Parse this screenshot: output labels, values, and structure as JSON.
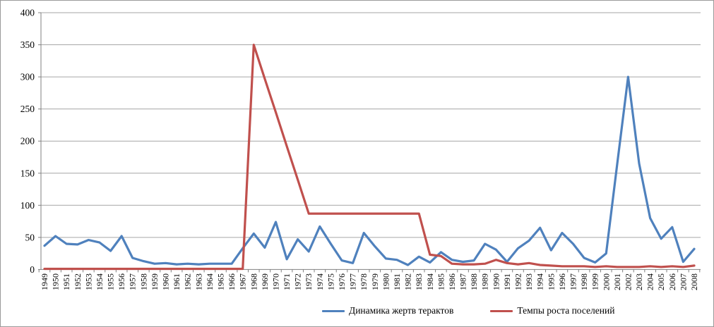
{
  "chart_data": {
    "type": "line",
    "title": "",
    "xlabel": "",
    "ylabel": "",
    "ylim": [
      0,
      400
    ],
    "y_ticks": [
      0,
      50,
      100,
      150,
      200,
      250,
      300,
      350,
      400
    ],
    "grid": "horizontal",
    "legend_position": "bottom",
    "x": [
      1949,
      1950,
      1951,
      1952,
      1953,
      1954,
      1955,
      1956,
      1957,
      1958,
      1959,
      1960,
      1961,
      1962,
      1963,
      1964,
      1965,
      1966,
      1967,
      1968,
      1969,
      1970,
      1971,
      1972,
      1973,
      1974,
      1975,
      1976,
      1977,
      1978,
      1979,
      1980,
      1981,
      1982,
      1983,
      1984,
      1985,
      1986,
      1987,
      1988,
      1989,
      1990,
      1991,
      1992,
      1993,
      1994,
      1995,
      1996,
      1997,
      1998,
      1999,
      2000,
      2001,
      2002,
      2003,
      2004,
      2005,
      2006,
      2007,
      2008
    ],
    "series": [
      {
        "name": "Динамика жертв терактов",
        "color": "#4F81BD",
        "values": [
          37,
          52,
          40,
          39,
          46,
          42,
          29,
          52,
          18,
          13,
          9,
          10,
          8,
          9,
          8,
          9,
          9,
          9,
          33,
          56,
          34,
          74,
          16,
          47,
          28,
          67,
          40,
          14,
          10,
          57,
          36,
          17,
          15,
          7,
          20,
          11,
          27,
          15,
          12,
          14,
          40,
          31,
          12,
          33,
          45,
          65,
          30,
          57,
          40,
          18,
          11,
          25,
          163,
          300,
          165,
          80,
          48,
          66,
          12,
          32
        ]
      },
      {
        "name": "Темпы роста поселений",
        "color": "#C0504D",
        "values": [
          1,
          1,
          1,
          1,
          1,
          1,
          1,
          1,
          1,
          1,
          1,
          1,
          1,
          1,
          1,
          1,
          1,
          1,
          1,
          350,
          297,
          245,
          192,
          140,
          87,
          87,
          87,
          87,
          87,
          87,
          87,
          87,
          87,
          87,
          87,
          23,
          21,
          9,
          8,
          8,
          9,
          15,
          10,
          8,
          10,
          7,
          6,
          5,
          5,
          5,
          4,
          5,
          4,
          4,
          4,
          5,
          4,
          5,
          4,
          6
        ]
      }
    ],
    "axis_color": "#808080",
    "gridline_color": "#A6A6A6"
  }
}
